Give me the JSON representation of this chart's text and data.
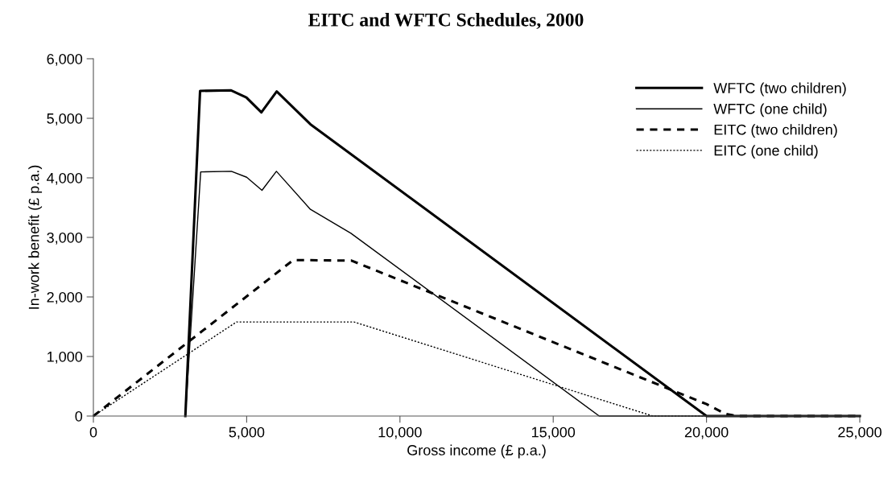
{
  "chart_data": {
    "type": "line",
    "title": "EITC and WFTC Schedules, 2000",
    "xlabel": "Gross income (£ p.a.)",
    "ylabel": "In-work benefit (£ p.a.)",
    "xlim": [
      0,
      25000
    ],
    "xticks": [
      {
        "value": 0,
        "label": "0"
      },
      {
        "value": 5000,
        "label": "5,000"
      },
      {
        "value": 10000,
        "label": "10,000"
      },
      {
        "value": 15000,
        "label": "15,000"
      },
      {
        "value": 20000,
        "label": "20,000"
      },
      {
        "value": 25000,
        "label": "25,000"
      }
    ],
    "ylim": [
      0,
      6000
    ],
    "yticks": [
      {
        "value": 0,
        "label": "0"
      },
      {
        "value": 1000,
        "label": "1,000"
      },
      {
        "value": 2000,
        "label": "2,000"
      },
      {
        "value": 3000,
        "label": "3,000"
      },
      {
        "value": 4000,
        "label": "4,000"
      },
      {
        "value": 5000,
        "label": "5,000"
      },
      {
        "value": 6000,
        "label": "6,000"
      }
    ],
    "grid": false,
    "legend": "top right",
    "series": [
      {
        "name": "WFTC (two children)",
        "color": "#000000",
        "line_style": "solid",
        "x": [
          3000,
          3480,
          4480,
          4990,
          5480,
          5980,
          7080,
          20000,
          25000
        ],
        "values": [
          0,
          5460,
          5470,
          5350,
          5100,
          5450,
          4900,
          0,
          0
        ]
      },
      {
        "name": "WFTC (one child)",
        "color": "#000000",
        "line_style": "solid",
        "x": [
          3000,
          3500,
          4500,
          5000,
          5500,
          5970,
          7080,
          8400,
          16500,
          25000
        ],
        "values": [
          0,
          4100,
          4110,
          4010,
          3790,
          4110,
          3470,
          3070,
          0,
          0
        ]
      },
      {
        "name": "EITC (two children)",
        "color": "#000000",
        "line_style": "dashed",
        "x": [
          0,
          6520,
          8420,
          20000,
          20600,
          21000,
          25000
        ],
        "values": [
          0,
          2620,
          2610,
          200,
          40,
          0,
          0
        ]
      },
      {
        "name": "EITC (one child)",
        "color": "#000000",
        "line_style": "dotted",
        "x": [
          0,
          4670,
          8500,
          18250,
          25000
        ],
        "values": [
          0,
          1580,
          1580,
          0,
          0
        ]
      }
    ]
  }
}
